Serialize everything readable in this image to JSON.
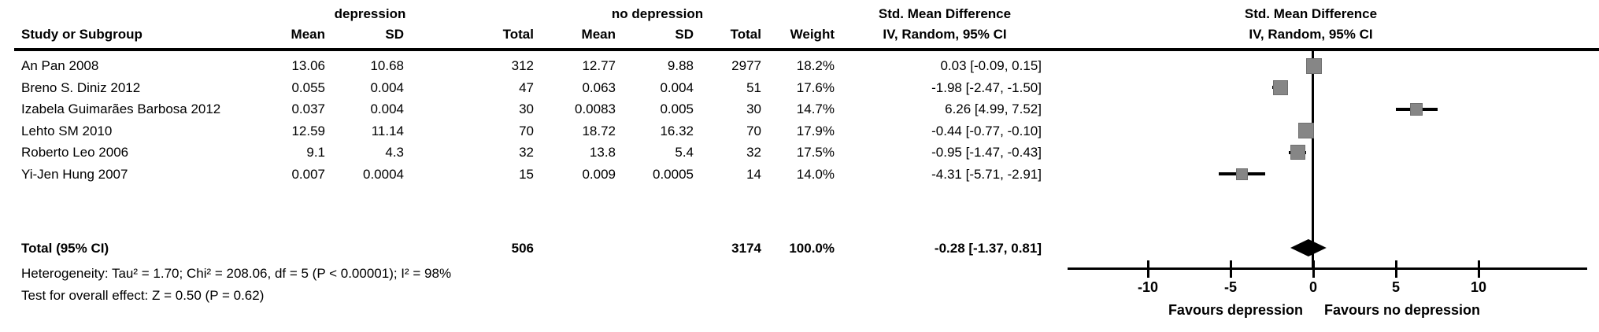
{
  "header": {
    "study_col": "Study or Subgroup",
    "group_experimental": "depression",
    "group_control": "no depression",
    "mean_col": "Mean",
    "sd_col": "SD",
    "total_col": "Total",
    "weight_col": "Weight",
    "smd_col_title": "Std. Mean Difference",
    "smd_col_subtitle": "IV, Random, 95% CI",
    "plot_title": "Std. Mean Difference",
    "plot_subtitle": "IV, Random, 95% CI"
  },
  "rows": [
    {
      "study": "An Pan 2008",
      "mean1": "13.06",
      "sd1": "10.68",
      "total1": "312",
      "mean2": "12.77",
      "sd2": "9.88",
      "total2": "2977",
      "weight": "18.2%",
      "ci_text": "0.03 [-0.09, 0.15]"
    },
    {
      "study": "Breno S. Diniz 2012",
      "mean1": "0.055",
      "sd1": "0.004",
      "total1": "47",
      "mean2": "0.063",
      "sd2": "0.004",
      "total2": "51",
      "weight": "17.6%",
      "ci_text": "-1.98 [-2.47, -1.50]"
    },
    {
      "study": "Izabela Guimarães Barbosa 2012",
      "mean1": "0.037",
      "sd1": "0.004",
      "total1": "30",
      "mean2": "0.0083",
      "sd2": "0.005",
      "total2": "30",
      "weight": "14.7%",
      "ci_text": "6.26 [4.99, 7.52]"
    },
    {
      "study": "Lehto SM 2010",
      "mean1": "12.59",
      "sd1": "11.14",
      "total1": "70",
      "mean2": "18.72",
      "sd2": "16.32",
      "total2": "70",
      "weight": "17.9%",
      "ci_text": "-0.44 [-0.77, -0.10]"
    },
    {
      "study": "Roberto Leo 2006",
      "mean1": "9.1",
      "sd1": "4.3",
      "total1": "32",
      "mean2": "13.8",
      "sd2": "5.4",
      "total2": "32",
      "weight": "17.5%",
      "ci_text": "-0.95 [-1.47, -0.43]"
    },
    {
      "study": "Yi-Jen Hung 2007",
      "mean1": "0.007",
      "sd1": "0.0004",
      "total1": "15",
      "mean2": "0.009",
      "sd2": "0.0005",
      "total2": "14",
      "weight": "14.0%",
      "ci_text": "-4.31 [-5.71, -2.91]"
    }
  ],
  "totals": {
    "label": "Total (95% CI)",
    "total1": "506",
    "total2": "3174",
    "weight": "100.0%",
    "ci_text": "-0.28 [-1.37, 0.81]"
  },
  "footnotes": {
    "heterogeneity": "Heterogeneity: Tau² = 1.70; Chi² = 208.06, df = 5 (P < 0.00001); I² = 98%",
    "overall_effect": "Test for overall effect: Z = 0.50 (P = 0.62)"
  },
  "chart_data": {
    "type": "forest",
    "title": "Std. Mean Difference",
    "subtitle": "IV, Random, 95% CI",
    "effect_measure": "Std. Mean Difference, IV, Random, 95% CI",
    "xlim": [
      -13,
      14
    ],
    "ticks": [
      -10,
      -5,
      0,
      5,
      10
    ],
    "x_axis_label_left": "Favours depression",
    "x_axis_label_right": "Favours no depression",
    "marker_color": "#868686",
    "line_color": "#000000",
    "studies": [
      {
        "name": "An Pan 2008",
        "est": 0.03,
        "lo": -0.09,
        "hi": 0.15,
        "weight": 18.2
      },
      {
        "name": "Breno S. Diniz 2012",
        "est": -1.98,
        "lo": -2.47,
        "hi": -1.5,
        "weight": 17.6
      },
      {
        "name": "Izabela Guimarães Barbosa 2012",
        "est": 6.26,
        "lo": 4.99,
        "hi": 7.52,
        "weight": 14.7
      },
      {
        "name": "Lehto SM 2010",
        "est": -0.44,
        "lo": -0.77,
        "hi": -0.1,
        "weight": 17.9
      },
      {
        "name": "Roberto Leo 2006",
        "est": -0.95,
        "lo": -1.47,
        "hi": -0.43,
        "weight": 17.5
      },
      {
        "name": "Yi-Jen Hung 2007",
        "est": -4.31,
        "lo": -5.71,
        "hi": -2.91,
        "weight": 14.0
      }
    ],
    "total": {
      "name": "Total (95% CI)",
      "est": -0.28,
      "lo": -1.37,
      "hi": 0.81
    }
  }
}
